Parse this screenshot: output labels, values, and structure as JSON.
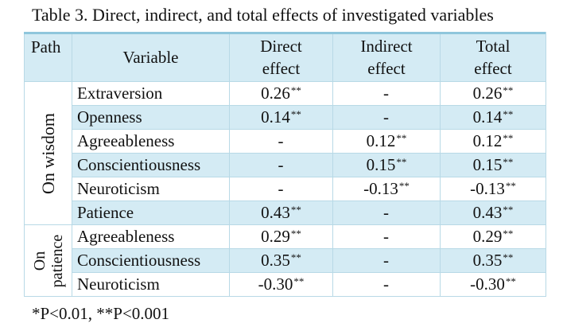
{
  "caption": "Table 3. Direct, indirect, and total effects of investigated variables",
  "headers": {
    "path": "Path",
    "variable": "Variable",
    "direct_1": "Direct",
    "direct_2": "effect",
    "indirect_1": "Indirect",
    "indirect_2": "effect",
    "total_1": "Total",
    "total_2": "effect"
  },
  "groups": {
    "wisdom": "On wisdom",
    "patience_1": "On",
    "patience_2": "patience"
  },
  "rows": [
    {
      "variable": "Extraversion",
      "direct": "0.26",
      "direct_sig": "**",
      "indirect": "-",
      "indirect_sig": "",
      "total": "0.26",
      "total_sig": "**"
    },
    {
      "variable": "Openness",
      "direct": "0.14",
      "direct_sig": "**",
      "indirect": "-",
      "indirect_sig": "",
      "total": "0.14",
      "total_sig": "**"
    },
    {
      "variable": "Agreeableness",
      "direct": "-",
      "direct_sig": "",
      "indirect": "0.12",
      "indirect_sig": "**",
      "total": "0.12",
      "total_sig": "**"
    },
    {
      "variable": "Conscientiousness",
      "direct": "-",
      "direct_sig": "",
      "indirect": "0.15",
      "indirect_sig": "**",
      "total": "0.15",
      "total_sig": "**"
    },
    {
      "variable": "Neuroticism",
      "direct": "-",
      "direct_sig": "",
      "indirect": "-0.13",
      "indirect_sig": "**",
      "total": "-0.13",
      "total_sig": "**"
    },
    {
      "variable": "Patience",
      "direct": "0.43",
      "direct_sig": "**",
      "indirect": "-",
      "indirect_sig": "",
      "total": "0.43",
      "total_sig": "**"
    },
    {
      "variable": "Agreeableness",
      "direct": "0.29",
      "direct_sig": "**",
      "indirect": "-",
      "indirect_sig": "",
      "total": "0.29",
      "total_sig": "**"
    },
    {
      "variable": "Conscientiousness",
      "direct": "0.35",
      "direct_sig": "**",
      "indirect": "-",
      "indirect_sig": "",
      "total": "0.35",
      "total_sig": "**"
    },
    {
      "variable": "Neuroticism",
      "direct": "-0.30",
      "direct_sig": "**",
      "indirect": "-",
      "indirect_sig": "",
      "total": "-0.30",
      "total_sig": "**"
    }
  ],
  "footnote": "*P<0.01, **P<0.001",
  "colors": {
    "header_fill": "#d4ebf4",
    "border": "#b8d9e6",
    "rule": "#8fc6dc"
  }
}
